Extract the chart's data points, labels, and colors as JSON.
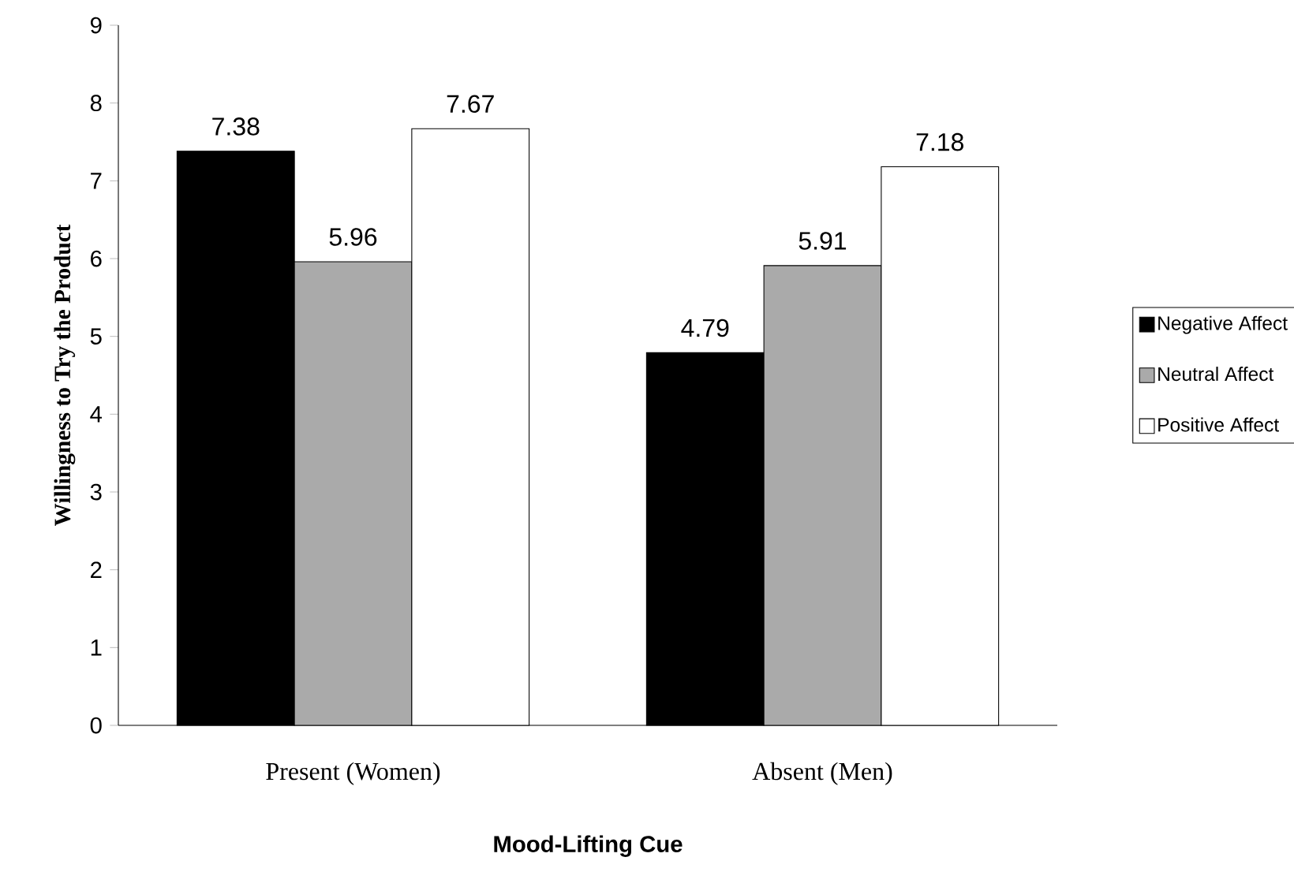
{
  "chart_data": {
    "type": "bar",
    "xlabel": "Mood-Lifting Cue",
    "ylabel": "Willingness to Try the Product",
    "categories": [
      "Present (Women)",
      "Absent (Men)"
    ],
    "series": [
      {
        "name": "Negative Affect",
        "color": "#000000",
        "values": [
          7.38,
          4.79
        ]
      },
      {
        "name": "Neutral Affect",
        "color": "#aaaaaa",
        "values": [
          5.96,
          5.91
        ]
      },
      {
        "name": "Positive Affect",
        "color": "#ffffff",
        "values": [
          7.67,
          7.18
        ]
      }
    ],
    "ylim": [
      0,
      9
    ],
    "yticks": [
      0,
      1,
      2,
      3,
      4,
      5,
      6,
      7,
      8,
      9
    ],
    "data_labels": true,
    "legend": "right",
    "grid": false
  }
}
